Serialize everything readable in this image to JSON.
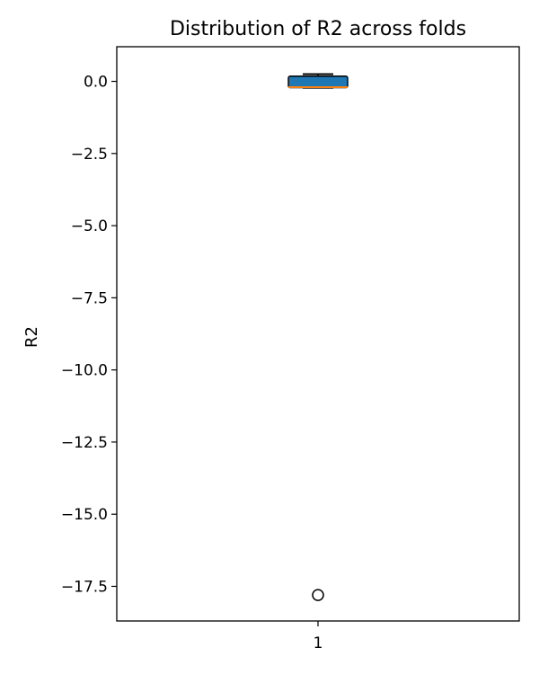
{
  "chart_data": {
    "type": "box",
    "title": "Distribution of R2 across folds",
    "xlabel": "",
    "ylabel": "R2",
    "ylim": [
      -18.7,
      1.2
    ],
    "grid": false,
    "categories": [
      "1"
    ],
    "boxes": [
      {
        "category": "1",
        "whisker_low": -0.22,
        "q1": -0.22,
        "median": -0.2,
        "q3": 0.18,
        "whisker_high": 0.25,
        "outliers": [
          -17.8
        ]
      }
    ],
    "yticks": [
      0.0,
      -2.5,
      -5.0,
      -7.5,
      -10.0,
      -12.5,
      -15.0,
      -17.5
    ],
    "ytick_labels": [
      "0.0",
      "−2.5",
      "−5.0",
      "−7.5",
      "−10.0",
      "−12.5",
      "−15.0",
      "−17.5"
    ],
    "colors": {
      "box_fill": "#1f77b4",
      "median": "#ff7f0e",
      "edge": "#000000"
    }
  }
}
